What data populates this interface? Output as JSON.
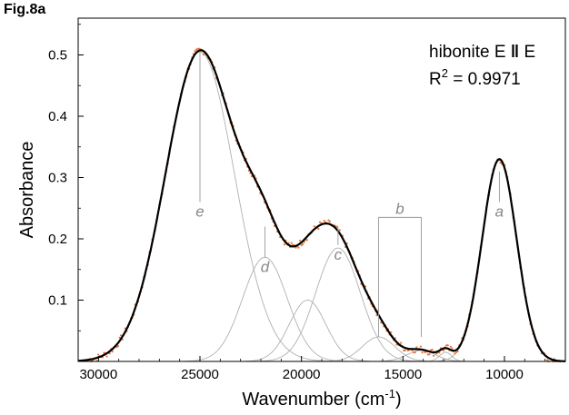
{
  "figure_label": "Fig.8a",
  "colors": {
    "fit": "#000000",
    "components": "#b0b0b0",
    "data_points": "#e8763a",
    "frame": "#000000"
  },
  "chart_data": {
    "type": "line",
    "xlabel": "Wavenumber (cm-1)",
    "ylabel": "Absorbance",
    "xlim": [
      31000,
      7000
    ],
    "ylim": [
      0,
      0.56
    ],
    "x_ticks": [
      30000,
      25000,
      20000,
      15000,
      10000
    ],
    "x_tick_labels": [
      "30000",
      "25000",
      "20000",
      "15000",
      "10000"
    ],
    "y_ticks": [
      0.1,
      0.2,
      0.3,
      0.4,
      0.5
    ],
    "y_tick_labels": [
      "0.1",
      "0.2",
      "0.3",
      "0.4",
      "0.5"
    ],
    "grid": false,
    "annotation_text": "hibonite E",
    "annotation_tail": "E",
    "r2_text": "= 0.9971",
    "r2_symbol": "R",
    "components": [
      {
        "label": "e",
        "center": 25000,
        "amplitude": 0.505,
        "sigma": 1700
      },
      {
        "label": "d",
        "center": 21800,
        "amplitude": 0.17,
        "sigma": 1100
      },
      {
        "label": "",
        "center": 19700,
        "amplitude": 0.1,
        "sigma": 900
      },
      {
        "label": "c",
        "center": 18200,
        "amplitude": 0.185,
        "sigma": 1100
      },
      {
        "label": "",
        "center": 16200,
        "amplitude": 0.04,
        "sigma": 800
      },
      {
        "label": "",
        "center": 14100,
        "amplitude": 0.018,
        "sigma": 700
      },
      {
        "label": "",
        "center": 12900,
        "amplitude": 0.015,
        "sigma": 300
      },
      {
        "label": "a",
        "center": 10250,
        "amplitude": 0.33,
        "sigma": 850
      }
    ],
    "peak_markers": [
      {
        "label": "e",
        "x": 25000,
        "y_top": 0.505,
        "y_bottom": 0.26
      },
      {
        "label": "d",
        "x": 21800,
        "y_top": 0.22,
        "y_bottom": 0.17
      },
      {
        "label": "c",
        "x": 18200,
        "y_top": 0.22,
        "y_bottom": 0.19
      },
      {
        "label": "a",
        "x": 10250,
        "y_top": 0.31,
        "y_bottom": 0.26
      }
    ],
    "band_b": {
      "label": "b",
      "x_from": 16200,
      "x_to": 14100,
      "y_top": 0.235,
      "y_bottom": 0.04
    }
  }
}
